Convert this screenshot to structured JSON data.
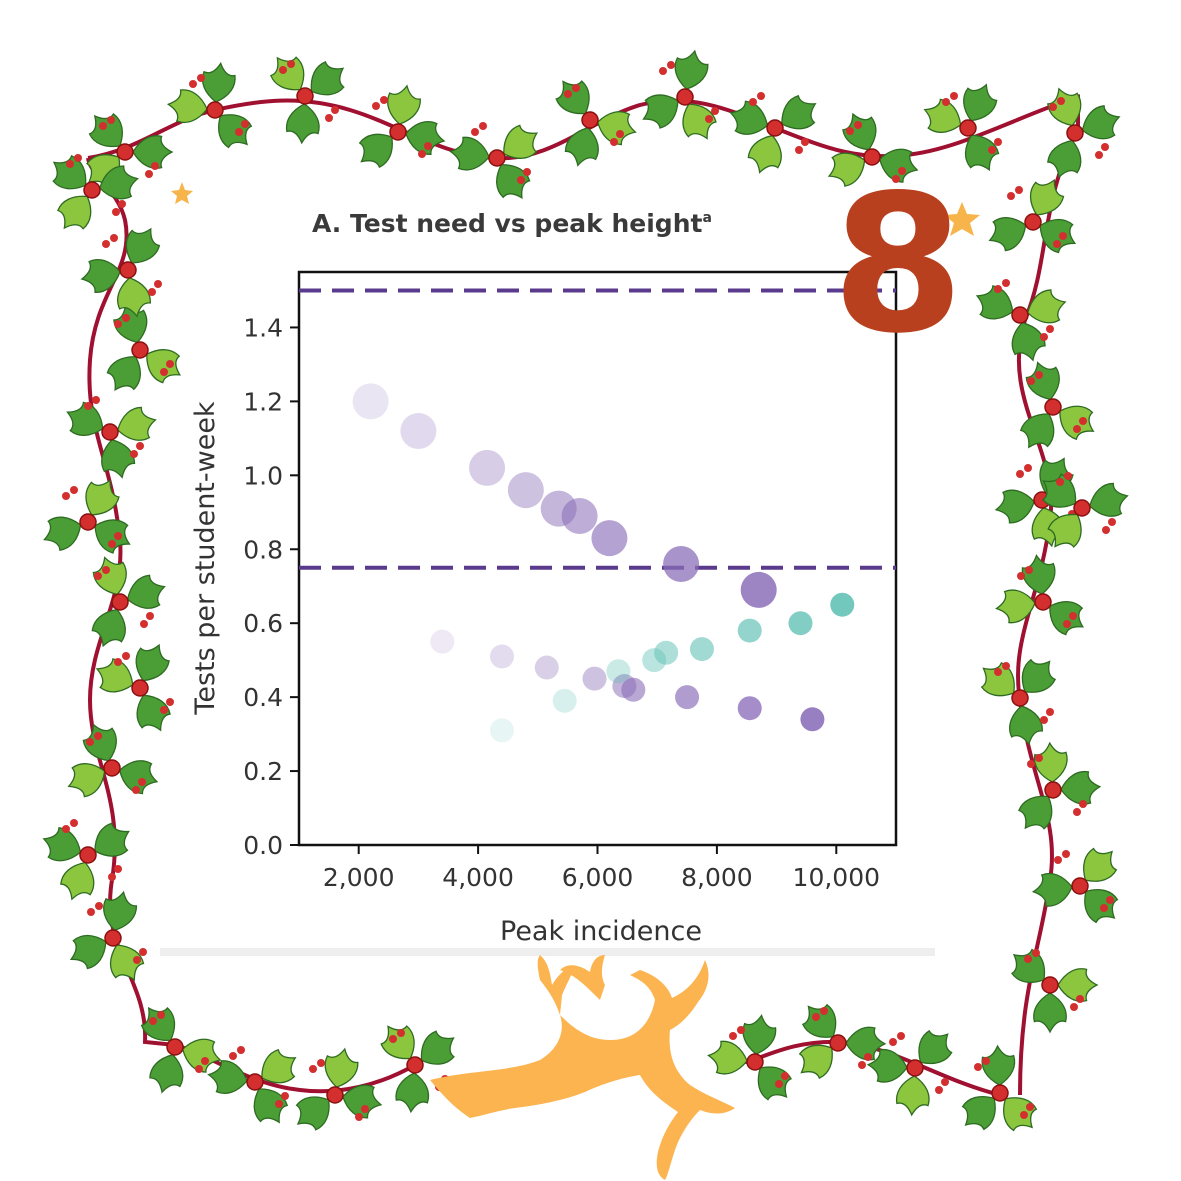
{
  "badge": {
    "number": "8",
    "color": "#b8401e"
  },
  "decorations": {
    "frame": "holly-garland-frame",
    "reindeer": "leaping-reindeer-icon",
    "star": "star-icon",
    "holly_leaf_color": "#4a9e35",
    "holly_leaf_light": "#8cc63f",
    "berry_color": "#d32f2f",
    "ribbon_color": "#a01030",
    "reindeer_color": "#fbb450"
  },
  "chart_data": {
    "type": "scatter",
    "title": "A. Test need vs peak height",
    "title_superscript": "a",
    "xlabel": "Peak incidence",
    "ylabel": "Tests per student-week",
    "xlim": [
      1000,
      11000
    ],
    "ylim": [
      0,
      1.55
    ],
    "x_ticks": [
      2000,
      4000,
      6000,
      8000,
      10000
    ],
    "x_tick_labels": [
      "2,000",
      "4,000",
      "6,000",
      "8,000",
      "10,000"
    ],
    "y_ticks": [
      0,
      0.2,
      0.4,
      0.6,
      0.8,
      1.0,
      1.2,
      1.4
    ],
    "y_tick_labels": [
      "0.0",
      "0.2",
      "0.4",
      "0.6",
      "0.8",
      "1.0",
      "1.2",
      "1.4"
    ],
    "grid": false,
    "reference_lines": [
      {
        "y": 1.5,
        "style": "dashed",
        "color": "#5a3a8c"
      },
      {
        "y": 0.75,
        "style": "dashed",
        "color": "#5a3a8c"
      }
    ],
    "series": [
      {
        "color": "#8a6db8",
        "size": "large",
        "points": [
          [
            2200,
            1.2
          ],
          [
            3000,
            1.12
          ],
          [
            4150,
            1.02
          ],
          [
            4800,
            0.96
          ],
          [
            5350,
            0.91
          ],
          [
            5700,
            0.89
          ],
          [
            6200,
            0.83
          ],
          [
            7400,
            0.76
          ],
          [
            8700,
            0.69
          ]
        ],
        "opacity": [
          0.18,
          0.26,
          0.34,
          0.42,
          0.5,
          0.56,
          0.64,
          0.74,
          0.84
        ]
      },
      {
        "color": "#8a6db8",
        "size": "small",
        "points": [
          [
            3400,
            0.55
          ],
          [
            4400,
            0.51
          ],
          [
            5150,
            0.48
          ],
          [
            5950,
            0.45
          ],
          [
            6450,
            0.43
          ],
          [
            6600,
            0.42
          ],
          [
            7500,
            0.4
          ],
          [
            8550,
            0.37
          ],
          [
            9600,
            0.34
          ]
        ],
        "opacity": [
          0.15,
          0.24,
          0.32,
          0.42,
          0.52,
          0.6,
          0.68,
          0.78,
          0.88
        ]
      },
      {
        "color": "#5bbfb2",
        "size": "small",
        "points": [
          [
            4400,
            0.31
          ],
          [
            5450,
            0.39
          ],
          [
            6350,
            0.47
          ],
          [
            6950,
            0.5
          ],
          [
            7150,
            0.52
          ],
          [
            7750,
            0.53
          ],
          [
            8550,
            0.58
          ],
          [
            9400,
            0.6
          ],
          [
            10100,
            0.65
          ]
        ],
        "opacity": [
          0.15,
          0.24,
          0.32,
          0.42,
          0.5,
          0.58,
          0.66,
          0.76,
          0.86
        ]
      }
    ]
  }
}
